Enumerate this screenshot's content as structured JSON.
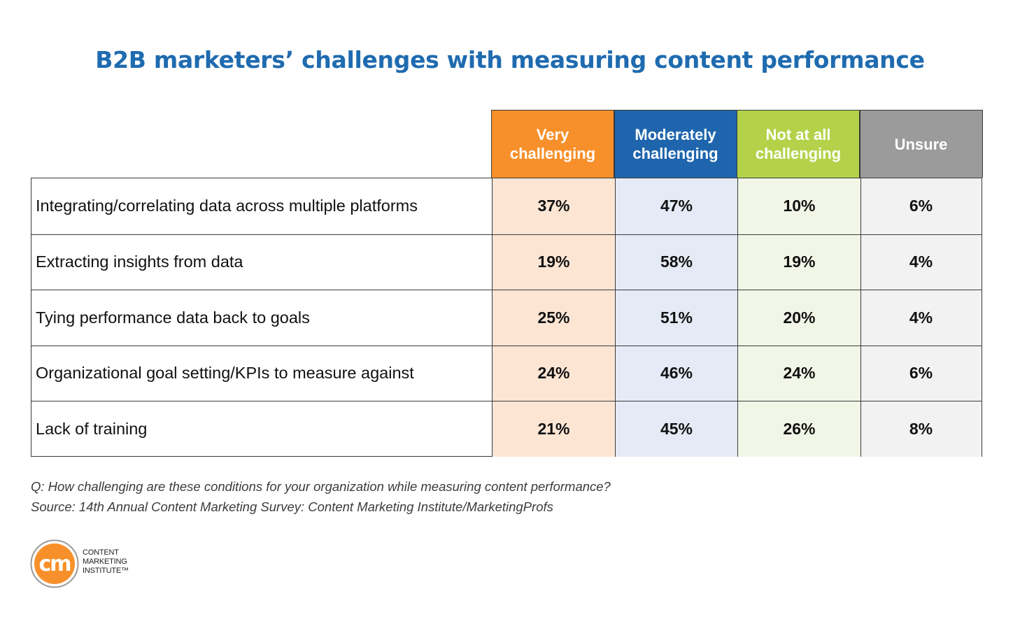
{
  "title": "B2B marketers’ challenges with measuring content performance",
  "colors": {
    "title": "#1f6bb0",
    "very_challenging": "#f7902a",
    "moderately_challenging": "#1f65ad",
    "not_at_all_challenging": "#b3d24a",
    "unsure": "#9b9b9b",
    "very_challenging_cells": "#fde5d4",
    "moderately_challenging_cells": "#e4ebf6",
    "not_at_all_challenging_cells": "#f1f6e6",
    "unsure_cells": "#f2f2f2"
  },
  "chart_data": {
    "type": "table",
    "columns": [
      "Very\nchallenging",
      "Moderately\nchallenging",
      "Not at all\nchallenging",
      "Unsure"
    ],
    "rows": [
      {
        "label": "Integrating/correlating data across multiple platforms",
        "values": [
          "37%",
          "47%",
          "10%",
          "6%"
        ]
      },
      {
        "label": "Extracting insights from data",
        "values": [
          "19%",
          "58%",
          "19%",
          "4%"
        ]
      },
      {
        "label": "Tying performance data back to goals",
        "values": [
          "25%",
          "51%",
          "20%",
          "4%"
        ]
      },
      {
        "label": "Organizational goal setting/KPIs to measure against",
        "values": [
          "24%",
          "46%",
          "24%",
          "6%"
        ]
      },
      {
        "label": "Lack of training",
        "values": [
          "21%",
          "45%",
          "26%",
          "8%"
        ]
      }
    ]
  },
  "footnotes": {
    "question": "Q: How challenging are these conditions for your organization while measuring content performance?",
    "source": "Source: 14th Annual Content Marketing Survey: Content Marketing Institute/MarketingProfs"
  },
  "logo": {
    "mark": "cm",
    "lines": [
      "CONTENT",
      "MARKETING",
      "INSTITUTE™"
    ]
  }
}
